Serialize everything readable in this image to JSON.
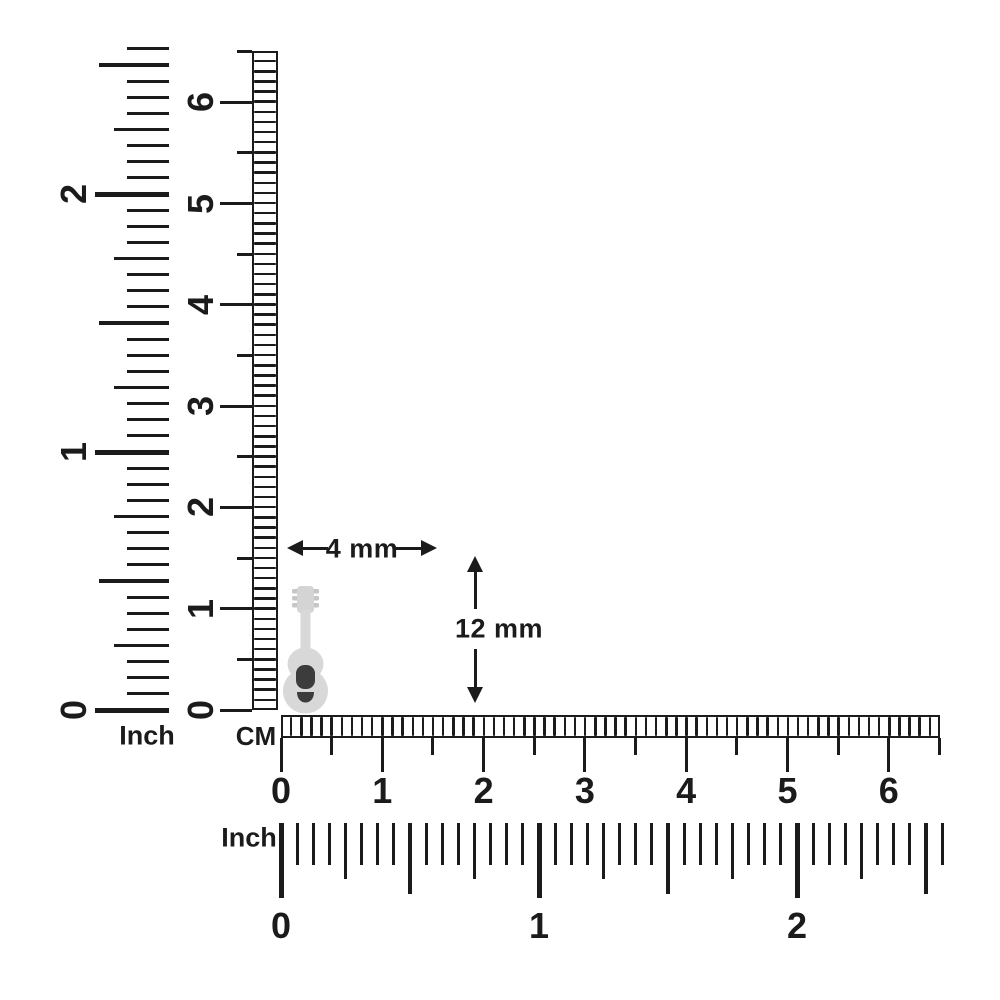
{
  "colors": {
    "ink": "#1b1b1b",
    "background": "#ffffff",
    "item_body": "#d8d8d8",
    "item_detail": "#3c3c3c"
  },
  "annotations": {
    "width_label": "4 mm",
    "height_label": "12 mm"
  },
  "item": {
    "name": "guitar charm"
  },
  "rulers": {
    "vertical_inch": {
      "unit_label": "Inch",
      "numbers": [
        "0",
        "1",
        "2"
      ],
      "divisions_per_unit": 16,
      "total_divisions": 41
    },
    "vertical_cm": {
      "unit_label": "CM",
      "numbers": [
        "0",
        "1",
        "2",
        "3",
        "4",
        "5",
        "6"
      ],
      "mm_cells": 65
    },
    "horizontal_cm": {
      "numbers": [
        "0",
        "1",
        "2",
        "3",
        "4",
        "5",
        "6"
      ],
      "mm_cells": 65
    },
    "horizontal_inch": {
      "unit_label": "Inch",
      "numbers": [
        "0",
        "1",
        "2"
      ],
      "divisions_per_unit": 16,
      "total_divisions": 41
    }
  }
}
